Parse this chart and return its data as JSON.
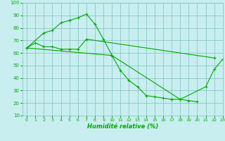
{
  "title": "",
  "xlabel": "Humidité relative (%)",
  "ylabel": "",
  "bg_color": "#c8eef0",
  "grid_color": "#7fbfbf",
  "line_color": "#00aa00",
  "xlim": [
    -0.5,
    23
  ],
  "ylim": [
    10,
    100
  ],
  "xticks": [
    0,
    1,
    2,
    3,
    4,
    5,
    6,
    7,
    8,
    9,
    10,
    11,
    12,
    13,
    14,
    15,
    16,
    17,
    18,
    19,
    20,
    21,
    22,
    23
  ],
  "yticks": [
    10,
    20,
    30,
    40,
    50,
    60,
    70,
    80,
    90,
    100
  ],
  "series": [
    {
      "x": [
        0,
        1,
        2,
        3,
        4,
        5,
        6,
        7,
        22
      ],
      "y": [
        64,
        68,
        65,
        65,
        63,
        63,
        63,
        71,
        56
      ]
    },
    {
      "x": [
        0,
        2,
        3,
        4,
        5,
        6,
        7,
        8,
        9,
        10,
        11,
        12,
        13,
        14,
        15,
        16,
        17,
        18,
        19,
        20
      ],
      "y": [
        64,
        76,
        78,
        84,
        86,
        88,
        91,
        83,
        71,
        58,
        46,
        38,
        33,
        26,
        25,
        24,
        23,
        23,
        22,
        21
      ]
    },
    {
      "x": [
        0,
        10,
        18,
        21,
        22,
        23
      ],
      "y": [
        64,
        58,
        23,
        33,
        47,
        55
      ]
    }
  ]
}
